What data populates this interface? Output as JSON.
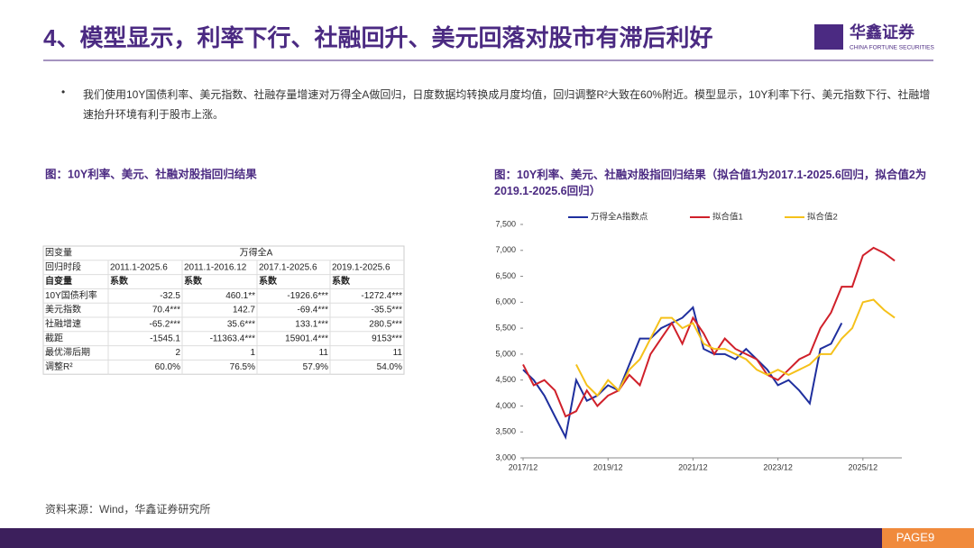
{
  "header": {
    "title": "4、模型显示，利率下行、社融回升、美元回落对股市有滞后利好",
    "logo_text": "华鑫证券",
    "logo_sub": "CHINA FORTUNE SECURITIES"
  },
  "bullet": "我们使用10Y国债利率、美元指数、社融存量增速对万得全A做回归，日度数据均转换成月度均值，回归调整R²大致在60%附近。模型显示，10Y利率下行、美元指数下行、社融增速抬升环境有利于股市上涨。",
  "table": {
    "caption": "图：10Y利率、美元、社融对股指回归结果",
    "rows": [
      [
        "因变量",
        "万得全A"
      ],
      [
        "回归时段",
        "2011.1-2025.6",
        "2011.1-2016.12",
        "2017.1-2025.6",
        "2019.1-2025.6"
      ],
      [
        "自变量",
        "系数",
        "系数",
        "系数",
        "系数"
      ],
      [
        "10Y国债利率",
        "-32.5",
        "460.1**",
        "-1926.6***",
        "-1272.4***"
      ],
      [
        "美元指数",
        "70.4***",
        "142.7",
        "-69.4***",
        "-35.5***"
      ],
      [
        "社融增速",
        "-65.2***",
        "35.6***",
        "133.1***",
        "280.5***"
      ],
      [
        "截距",
        "-1545.1",
        "-11363.4***",
        "15901.4***",
        "9153***"
      ],
      [
        "最优滞后期",
        "2",
        "1",
        "11",
        "11"
      ],
      [
        "调整R²",
        "60.0%",
        "76.5%",
        "57.9%",
        "54.0%"
      ]
    ]
  },
  "chart_data": {
    "type": "line",
    "title": "图：10Y利率、美元、社融对股指回归结果（拟合值1为2017.1-2025.6回归，拟合值2为2019.1-2025.6回归）",
    "x": [
      "2017/12",
      "2018/03",
      "2018/06",
      "2018/09",
      "2018/12",
      "2019/03",
      "2019/06",
      "2019/09",
      "2019/12",
      "2020/03",
      "2020/06",
      "2020/09",
      "2020/12",
      "2021/03",
      "2021/06",
      "2021/09",
      "2021/12",
      "2022/03",
      "2022/06",
      "2022/09",
      "2022/12",
      "2023/03",
      "2023/06",
      "2023/09",
      "2023/12",
      "2024/03",
      "2024/06",
      "2024/09",
      "2024/12",
      "2025/03",
      "2025/06",
      "2025/09",
      "2025/12",
      "2026/03",
      "2026/06",
      "2026/09"
    ],
    "series": [
      {
        "name": "万得全A指数点",
        "color": "#1f2f9e",
        "values": [
          4700,
          4500,
          4200,
          3800,
          3400,
          4500,
          4100,
          4200,
          4400,
          4300,
          4800,
          5300,
          5300,
          5500,
          5600,
          5700,
          5900,
          5100,
          5000,
          5000,
          4900,
          5100,
          4900,
          4700,
          4400,
          4500,
          4300,
          4050,
          5100,
          5200,
          5600,
          null,
          null,
          null,
          null,
          null
        ]
      },
      {
        "name": "拟合值1",
        "color": "#d0202a",
        "values": [
          4800,
          4400,
          4500,
          4300,
          3800,
          3900,
          4300,
          4000,
          4200,
          4300,
          4600,
          4400,
          5000,
          5300,
          5600,
          5200,
          5700,
          5400,
          5000,
          5300,
          5100,
          5000,
          4900,
          4600,
          4500,
          4700,
          4900,
          5000,
          5500,
          5800,
          6300,
          6300,
          6900,
          7050,
          6950,
          6800
        ]
      },
      {
        "name": "拟合值2",
        "color": "#f5c11a",
        "values": [
          null,
          null,
          null,
          null,
          null,
          4800,
          4400,
          4200,
          4500,
          4300,
          4700,
          4900,
          5300,
          5700,
          5700,
          5500,
          5600,
          5200,
          5100,
          5100,
          5000,
          4900,
          4700,
          4600,
          4700,
          4600,
          4700,
          4800,
          5000,
          5000,
          5300,
          5500,
          6000,
          6050,
          5850,
          5700
        ]
      }
    ],
    "xlim": [
      "2017/12",
      "2026/11"
    ],
    "xticks": [
      "2017/12",
      "2019/12",
      "2021/12",
      "2023/12",
      "2025/12"
    ],
    "ylim": [
      3000,
      7500
    ],
    "yticks": [
      {
        "value": 3000,
        "label": "3,000"
      },
      {
        "value": 3500,
        "label": "3,500"
      },
      {
        "value": 4000,
        "label": "4,000"
      },
      {
        "value": 4500,
        "label": "4,500"
      },
      {
        "value": 5000,
        "label": "5,000"
      },
      {
        "value": 5500,
        "label": "5,500"
      },
      {
        "value": 6000,
        "label": "6,000"
      },
      {
        "value": 6500,
        "label": "6,500"
      },
      {
        "value": 7000,
        "label": "7,000"
      },
      {
        "value": 7500,
        "label": "7,500"
      }
    ]
  },
  "source": "资料来源：Wind，华鑫证券研究所",
  "footer": {
    "page": "PAGE9"
  }
}
